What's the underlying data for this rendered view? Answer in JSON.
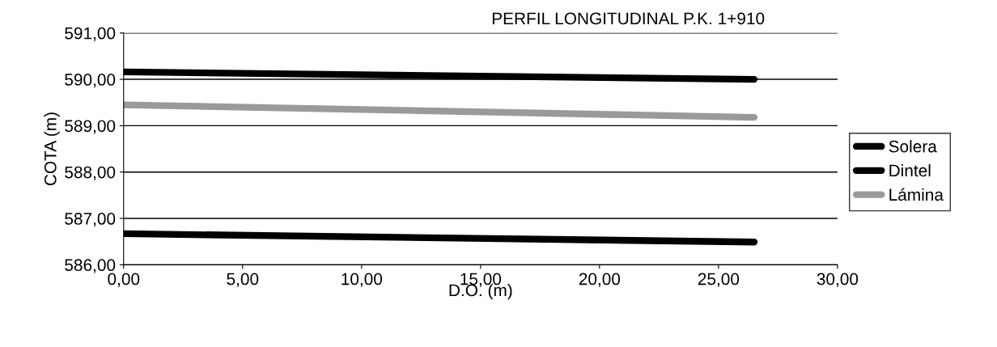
{
  "chart_data": {
    "type": "line",
    "title": "PERFIL LONGITUDINAL P.K. 1+910",
    "xlabel": "D.O. (m)",
    "ylabel": "COTA (m)",
    "x": [
      0,
      26.5
    ],
    "series": [
      {
        "name": "Solera",
        "color": "#000000",
        "values": [
          586.67,
          586.49
        ]
      },
      {
        "name": "Dintel",
        "color": "#000000",
        "values": [
          590.16,
          590.0
        ]
      },
      {
        "name": "Lámina",
        "color": "#9a9a9a",
        "values": [
          589.45,
          589.18
        ]
      }
    ],
    "xlim": [
      0,
      30
    ],
    "xticks": [
      {
        "value": 0,
        "label": "0,00"
      },
      {
        "value": 5,
        "label": "5,00"
      },
      {
        "value": 10,
        "label": "10,00"
      },
      {
        "value": 15,
        "label": "15,00"
      },
      {
        "value": 20,
        "label": "20,00"
      },
      {
        "value": 25,
        "label": "25,00"
      },
      {
        "value": 30,
        "label": "30,00"
      }
    ],
    "ylim": [
      586,
      591
    ],
    "yticks": [
      {
        "value": 586,
        "label": "586,00"
      },
      {
        "value": 587,
        "label": "587,00"
      },
      {
        "value": 588,
        "label": "588,00"
      },
      {
        "value": 589,
        "label": "589,00"
      },
      {
        "value": 590,
        "label": "590,00"
      },
      {
        "value": 591,
        "label": "591,00"
      }
    ],
    "grid": "y",
    "legend": "right",
    "marker": "none",
    "line_style": "solid"
  }
}
